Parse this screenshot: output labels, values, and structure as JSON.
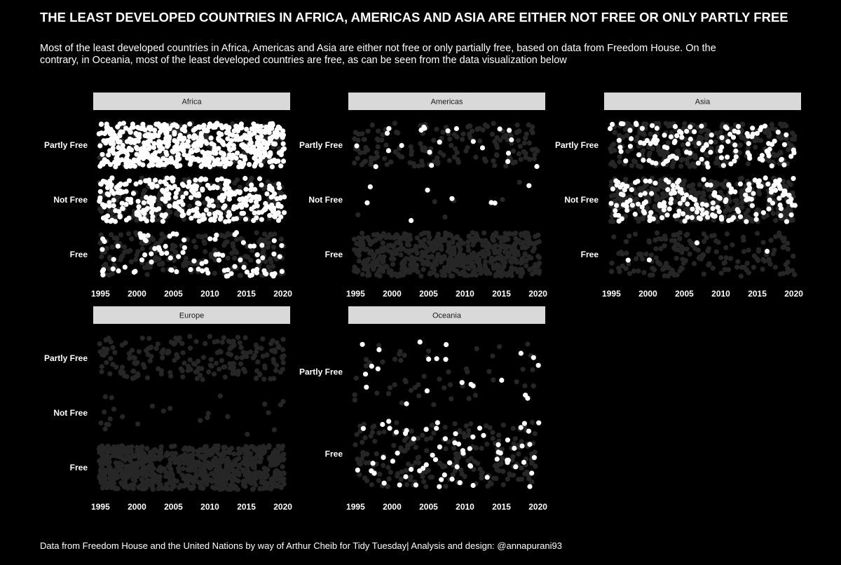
{
  "title": "THE LEAST DEVELOPED COUNTRIES IN AFRICA, AMERICAS AND ASIA ARE EITHER NOT FREE OR ONLY PARTLY FREE",
  "subtitle": "Most of the least developed countries in Africa, Americas and Asia are either not free or only partially free, based on data from Freedom House. On the contrary, in Oceania, most of the least developed countries are free, as can be seen from the data visualization below",
  "caption": "Data from Freedom House and the United Nations by way of Arthur Cheib for Tidy Tuesday| Analysis and design: @annapurani93",
  "colors": {
    "background": "#000000",
    "ldc_point": "#ffffff",
    "other_point": "#262626",
    "strip": "#d9d9d9"
  },
  "chart_data": {
    "type": "scatter",
    "jitter": true,
    "x_ticks": [
      1995,
      2000,
      2005,
      2010,
      2015,
      2020
    ],
    "xlim": [
      1994,
      2021
    ],
    "panels": [
      {
        "name": "Africa",
        "categories": [
          "Free",
          "Not Free",
          "Partly Free"
        ],
        "counts": {
          "Free": {
            "ldc": 90,
            "other": 210
          },
          "Not Free": {
            "ldc": 320,
            "other": 180
          },
          "Partly Free": {
            "ldc": 560,
            "other": 120
          }
        }
      },
      {
        "name": "Americas",
        "categories": [
          "Free",
          "Not Free",
          "Partly Free"
        ],
        "counts": {
          "Free": {
            "ldc": 0,
            "other": 600
          },
          "Not Free": {
            "ldc": 8,
            "other": 6
          },
          "Partly Free": {
            "ldc": 22,
            "other": 160
          }
        }
      },
      {
        "name": "Asia",
        "categories": [
          "Free",
          "Not Free",
          "Partly Free"
        ],
        "counts": {
          "Free": {
            "ldc": 4,
            "other": 180
          },
          "Not Free": {
            "ldc": 180,
            "other": 380
          },
          "Partly Free": {
            "ldc": 120,
            "other": 260
          }
        }
      },
      {
        "name": "Europe",
        "categories": [
          "Free",
          "Not Free",
          "Partly Free"
        ],
        "counts": {
          "Free": {
            "ldc": 0,
            "other": 850
          },
          "Not Free": {
            "ldc": 0,
            "other": 25
          },
          "Partly Free": {
            "ldc": 0,
            "other": 200
          }
        }
      },
      {
        "name": "Oceania",
        "categories": [
          "Free",
          "Partly Free"
        ],
        "counts": {
          "Free": {
            "ldc": 70,
            "other": 220
          },
          "Partly Free": {
            "ldc": 22,
            "other": 50
          }
        }
      }
    ]
  }
}
